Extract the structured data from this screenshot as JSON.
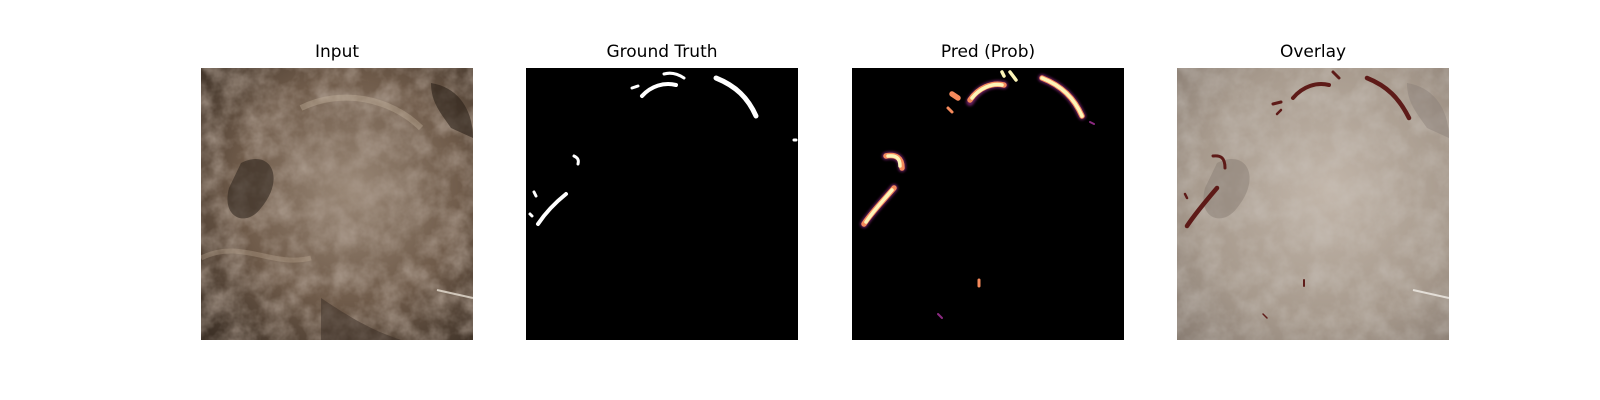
{
  "figure": {
    "panels": [
      {
        "title": "Input"
      },
      {
        "title": "Ground Truth"
      },
      {
        "title": "Pred (Prob)"
      },
      {
        "title": "Overlay"
      }
    ]
  },
  "colors": {
    "mask_white": "#ffffff",
    "mask_background": "#000000",
    "prob_high": "#fcf5b8",
    "prob_mid": "#f58a5c",
    "prob_low": "#8c2a81",
    "overlay_crack": "#5a1412",
    "rock_base": "#6f5a4b",
    "rock_light": "#a39484",
    "rock_dark": "#2d241d"
  }
}
